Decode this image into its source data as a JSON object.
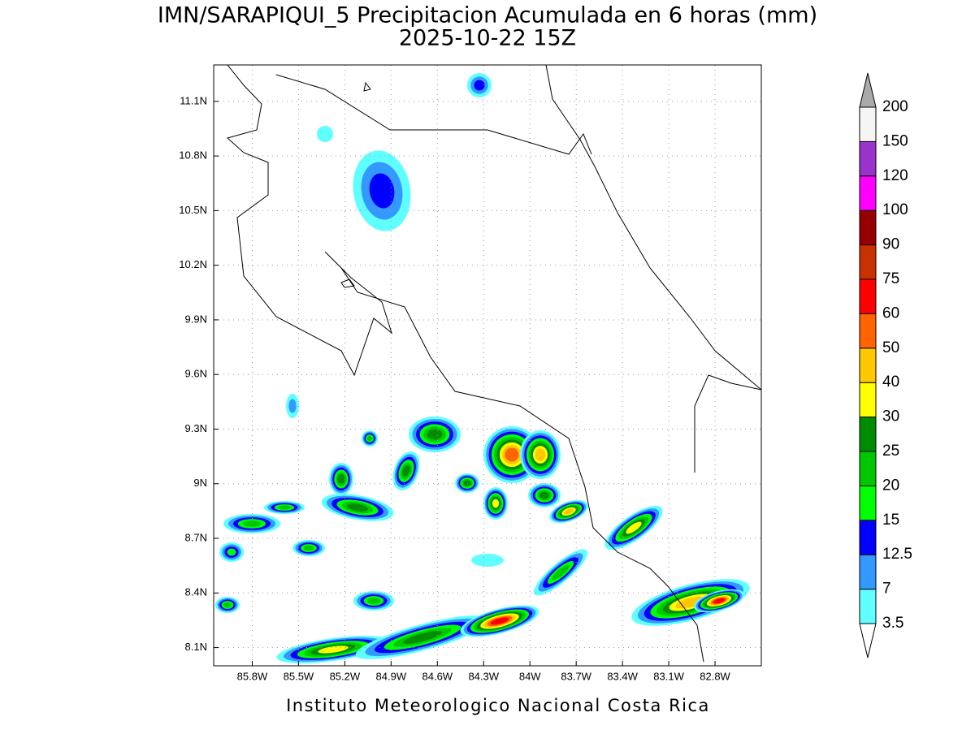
{
  "title": [
    "IMN/SARAPIQUI_5 Precipitacion Acumulada en 6 horas (mm)",
    "2025-10-22 15Z"
  ],
  "map": {
    "xlim": [
      -86.05,
      -82.5
    ],
    "ylim": [
      8.0,
      11.3
    ],
    "xticks": [
      {
        "value": -85.8,
        "label": "85.8W"
      },
      {
        "value": -85.5,
        "label": "85.5W"
      },
      {
        "value": -85.2,
        "label": "85.2W"
      },
      {
        "value": -84.9,
        "label": "84.9W"
      },
      {
        "value": -84.6,
        "label": "84.6W"
      },
      {
        "value": -84.3,
        "label": "84.3W"
      },
      {
        "value": -84,
        "label": "84W"
      },
      {
        "value": -83.7,
        "label": "83.7W"
      },
      {
        "value": -83.4,
        "label": "83.4W"
      },
      {
        "value": -83.1,
        "label": "83.1W"
      },
      {
        "value": -82.8,
        "label": "82.8W"
      }
    ],
    "yticks": [
      {
        "value": 8.1,
        "label": "8.1N"
      },
      {
        "value": 8.4,
        "label": "8.4N"
      },
      {
        "value": 8.7,
        "label": "8.7N"
      },
      {
        "value": 9,
        "label": "9N"
      },
      {
        "value": 9.3,
        "label": "9.3N"
      },
      {
        "value": 9.6,
        "label": "9.6N"
      },
      {
        "value": 9.9,
        "label": "9.9N"
      },
      {
        "value": 10.2,
        "label": "10.2N"
      },
      {
        "value": 10.5,
        "label": "10.5N"
      },
      {
        "value": 10.8,
        "label": "10.8N"
      },
      {
        "value": 11.1,
        "label": "11.1N"
      }
    ],
    "grid": true
  },
  "colorbar": {
    "levels": [
      3.5,
      7,
      12.5,
      15,
      20,
      25,
      30,
      40,
      50,
      60,
      75,
      90,
      100,
      120,
      150,
      200
    ],
    "colors": [
      "#60ffff",
      "#3399ff",
      "#0000ff",
      "#00ff00",
      "#00c800",
      "#008c00",
      "#ffff00",
      "#ffc800",
      "#ff6400",
      "#ff0000",
      "#c83200",
      "#960000",
      "#ff00ff",
      "#9933cc",
      "#f5f5f5"
    ],
    "over_color": "#aaaaaa",
    "under_color": "#ffffff"
  },
  "footer": "Instituto Meteorologico Nacional Costa Rica"
}
